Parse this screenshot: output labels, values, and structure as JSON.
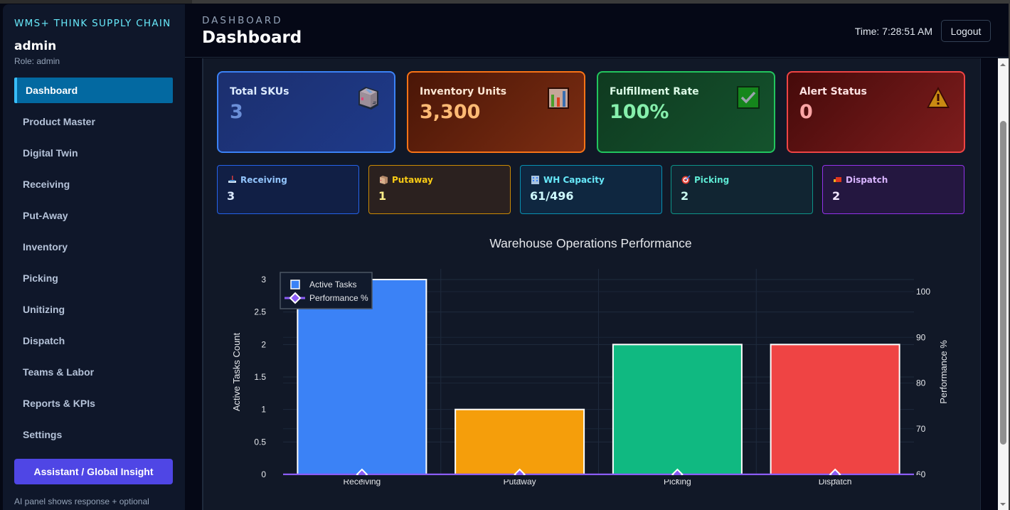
{
  "sidebar": {
    "brand": "WMS+ THINK SUPPLY CHAIN",
    "user_name": "admin",
    "user_role": "Role: admin",
    "items": [
      {
        "label": "Dashboard",
        "active": true
      },
      {
        "label": "Product Master"
      },
      {
        "label": "Digital Twin"
      },
      {
        "label": "Receiving"
      },
      {
        "label": "Put-Away"
      },
      {
        "label": "Inventory"
      },
      {
        "label": "Picking"
      },
      {
        "label": "Unitizing"
      },
      {
        "label": "Dispatch"
      },
      {
        "label": "Teams & Labor"
      },
      {
        "label": "Reports & KPIs"
      },
      {
        "label": "Settings"
      }
    ],
    "assistant_button": "Assistant / Global Insight",
    "assistant_note": "AI panel shows response + optional"
  },
  "header": {
    "breadcrumb": "DASHBOARD",
    "title": "Dashboard",
    "time": "Time: 7:28:51 AM",
    "logout_label": "Logout"
  },
  "kpis": [
    {
      "label": "Total SKUs",
      "value": "3",
      "icon": "package-box-icon",
      "color": "#3b82f6"
    },
    {
      "label": "Inventory Units",
      "value": "3,300",
      "icon": "bar-chart-icon",
      "color": "#f97316"
    },
    {
      "label": "Fulfillment Rate",
      "value": "100%",
      "icon": "check-box-icon",
      "color": "#22c55e"
    },
    {
      "label": "Alert Status",
      "value": "0",
      "icon": "warning-icon",
      "color": "#ef4444"
    }
  ],
  "stages": [
    {
      "label": "Receiving",
      "value": "3",
      "icon": "inbox-tray-icon",
      "color": "#2563eb"
    },
    {
      "label": "Putaway",
      "value": "1",
      "icon": "package-icon",
      "color": "#ca8a04"
    },
    {
      "label": "WH Capacity",
      "value": "61/496",
      "icon": "office-building-icon",
      "color": "#0891b2"
    },
    {
      "label": "Picking",
      "value": "2",
      "icon": "target-icon",
      "color": "#0d9488"
    },
    {
      "label": "Dispatch",
      "value": "2",
      "icon": "delivery-truck-icon",
      "color": "#9333ea"
    }
  ],
  "chart_data": {
    "type": "bar",
    "title": "Warehouse Operations Performance",
    "categories": [
      "Receiving",
      "Putaway",
      "Picking",
      "Dispatch"
    ],
    "series": [
      {
        "name": "Active Tasks",
        "type": "bar",
        "axis": "left",
        "values": [
          3,
          1,
          2,
          2
        ],
        "colors": [
          "#3b82f6",
          "#f59e0b",
          "#10b981",
          "#ef4444"
        ]
      },
      {
        "name": "Performance %",
        "type": "line",
        "axis": "right",
        "values": [
          0,
          0,
          0,
          0
        ],
        "color": "#8b5cf6"
      }
    ],
    "ylabel": "Active Tasks Count",
    "y2label": "Performance %",
    "ylim": [
      0,
      3
    ],
    "yticks": [
      "0",
      "0.5",
      "1",
      "1.5",
      "2",
      "2.5",
      "3"
    ],
    "y2lim": [
      60,
      100
    ],
    "y2ticks": [
      "60",
      "70",
      "80",
      "90",
      "100"
    ],
    "legend": {
      "position": "top-left",
      "items": [
        "Active Tasks",
        "Performance %"
      ]
    },
    "grid": true
  }
}
